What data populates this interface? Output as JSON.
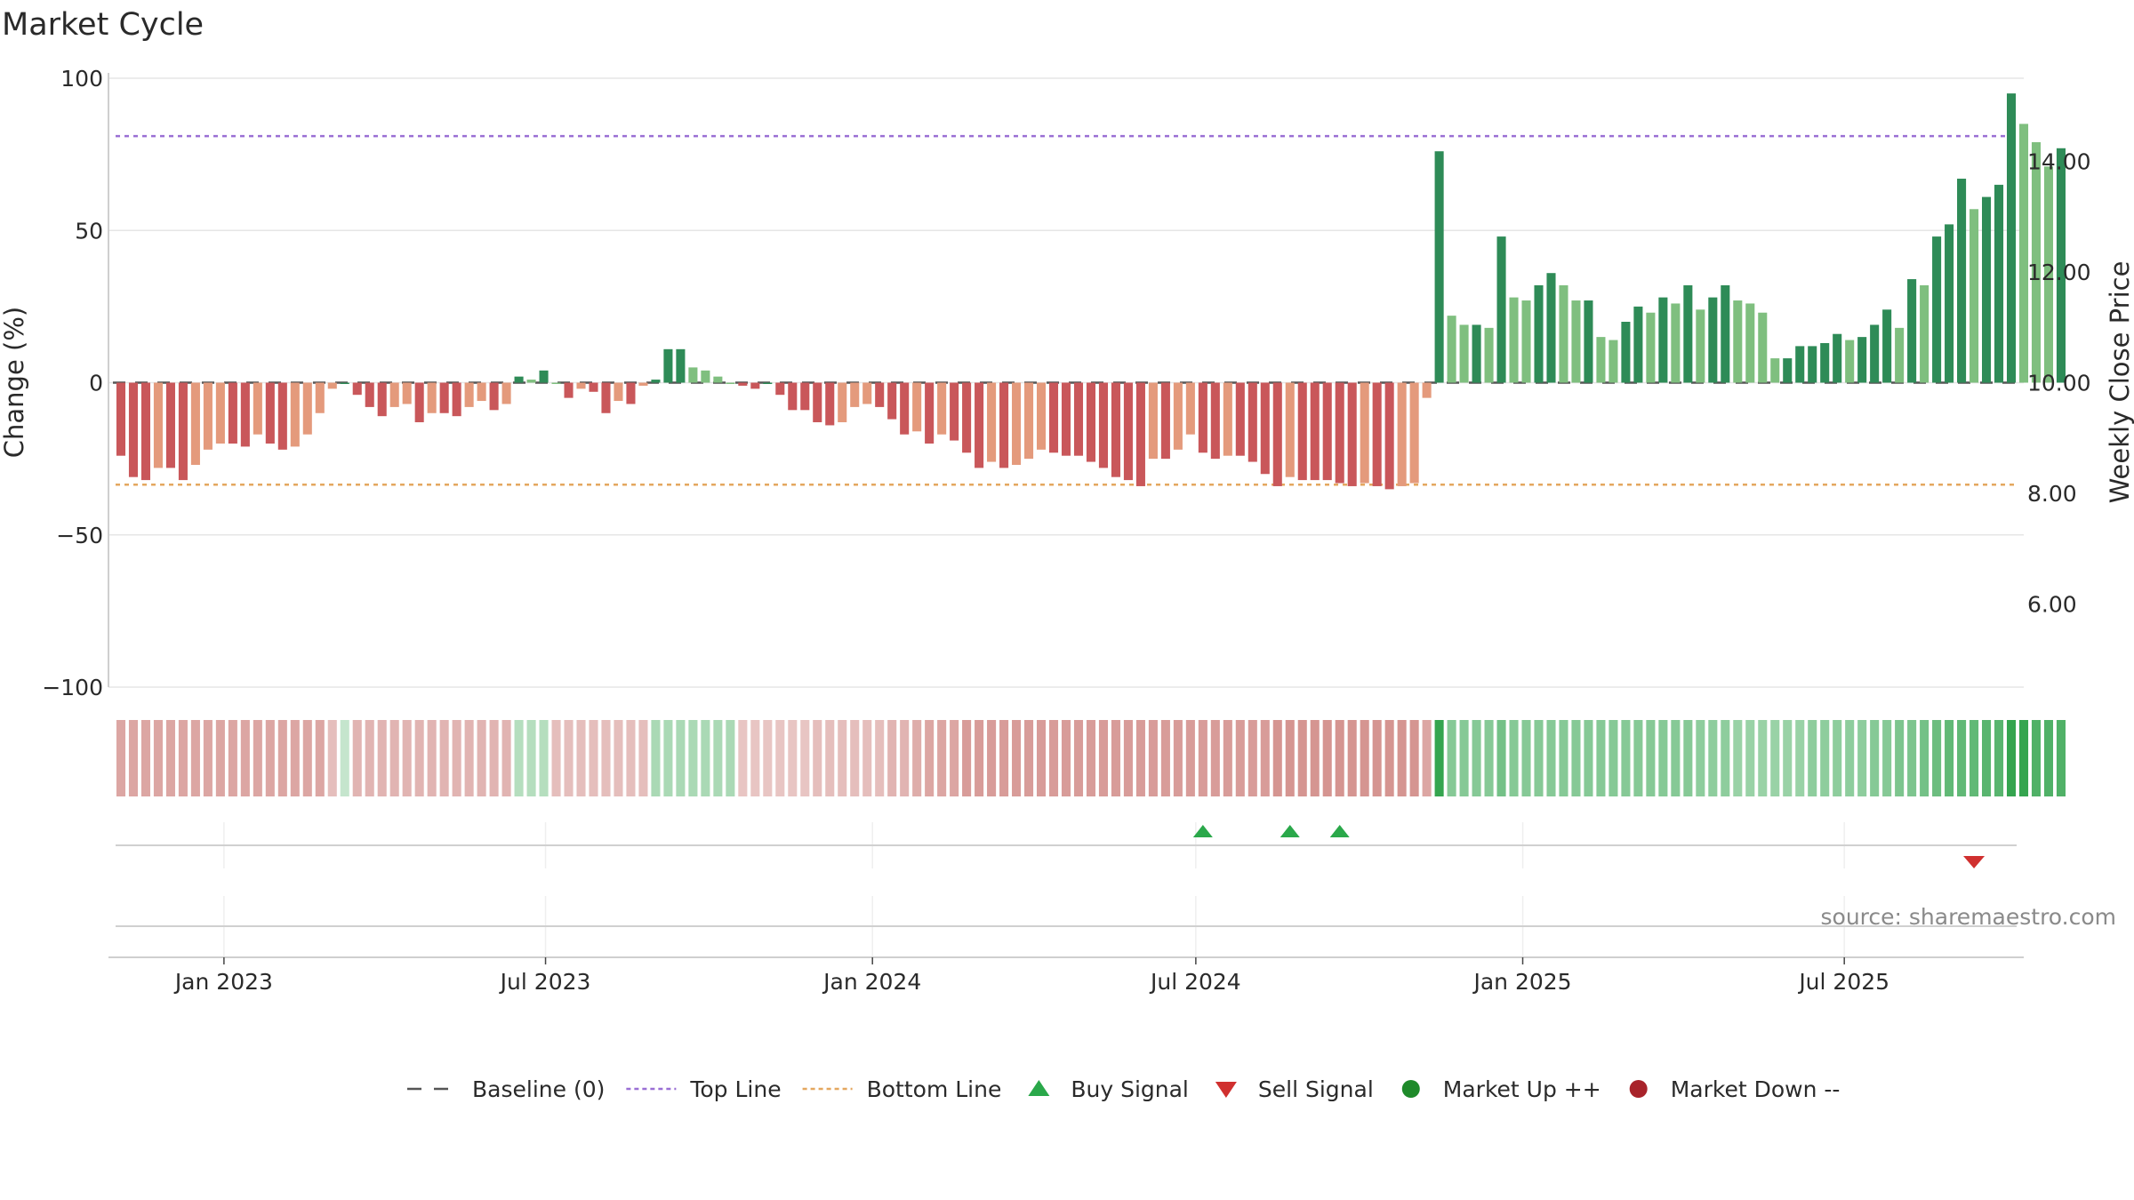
{
  "chart_data": {
    "type": "bar",
    "title": "Market Cycle",
    "ylabel": "Change (%)",
    "y2label": "Weekly Close Price",
    "ylim": [
      -100,
      100
    ],
    "y_ticks": [
      100,
      50,
      0,
      -50,
      -100
    ],
    "y_tick_labels": [
      "100",
      "50",
      "0",
      "−50",
      "−100"
    ],
    "y2lim": [
      4.5,
      15.5
    ],
    "y2_ticks": [
      14,
      12,
      10,
      8,
      6
    ],
    "y2_tick_labels": [
      "14.00",
      "12.00",
      "10.00",
      "8.00",
      "6.00"
    ],
    "x_start": "2022-10-28",
    "x_end": "2025-10-10",
    "week_dates_start": "2022-11-04",
    "x_ticks": [
      {
        "date": "2023-01-01",
        "label": "Jan 2023"
      },
      {
        "date": "2023-07-01",
        "label": "Jul 2023"
      },
      {
        "date": "2024-01-01",
        "label": "Jan 2024"
      },
      {
        "date": "2024-07-01",
        "label": "Jul 2024"
      },
      {
        "date": "2025-01-01",
        "label": "Jan 2025"
      },
      {
        "date": "2025-07-01",
        "label": "Jul 2025"
      }
    ],
    "top_line": 81,
    "bottom_line": -33.5,
    "baseline": 0,
    "weekly_change": [
      -24,
      -31,
      -32,
      -28,
      -28,
      -32,
      -27,
      -22,
      -20,
      -20,
      -21,
      -17,
      -20,
      -22,
      -21,
      -17,
      -10,
      -2,
      0,
      -4,
      -8,
      -11,
      -8,
      -7,
      -13,
      -10,
      -10,
      -11,
      -8,
      -6,
      -9,
      -7,
      2,
      1,
      4,
      0,
      -5,
      -2,
      -3,
      -10,
      -6,
      -7,
      -1,
      1,
      11,
      11,
      5,
      4,
      2,
      0,
      -1,
      -2,
      0,
      -4,
      -9,
      -9,
      -13,
      -14,
      -13,
      -8,
      -7,
      -8,
      -12,
      -17,
      -16,
      -20,
      -17,
      -19,
      -23,
      -28,
      -26,
      -28,
      -27,
      -25,
      -22,
      -23,
      -24,
      -24,
      -26,
      -28,
      -31,
      -32,
      -34,
      -25,
      -25,
      -22,
      -17,
      -23,
      -25,
      -24,
      -24,
      -26,
      -30,
      -34,
      -31,
      -32,
      -32,
      -32,
      -33,
      -34,
      -33,
      -34,
      -35,
      -34,
      -33,
      -5,
      76,
      22,
      19,
      19,
      18,
      48,
      28,
      27,
      32,
      36,
      32,
      27,
      27,
      15,
      14,
      20,
      25,
      23,
      28,
      26,
      32,
      24,
      28,
      32,
      27,
      26,
      23,
      8,
      8,
      12,
      12,
      13,
      16,
      14,
      15,
      19,
      24,
      18,
      34,
      32,
      48,
      52,
      67,
      57,
      61,
      65,
      95,
      85,
      79,
      71,
      77
    ],
    "heat_strip": [
      -0.45,
      -0.45,
      -0.45,
      -0.45,
      -0.45,
      -0.45,
      -0.45,
      -0.45,
      -0.45,
      -0.45,
      -0.45,
      -0.45,
      -0.45,
      -0.45,
      -0.45,
      -0.45,
      -0.45,
      -0.3,
      0.2,
      -0.35,
      -0.35,
      -0.35,
      -0.35,
      -0.35,
      -0.35,
      -0.35,
      -0.35,
      -0.35,
      -0.35,
      -0.35,
      -0.35,
      -0.35,
      0.3,
      0.3,
      0.3,
      -0.3,
      -0.3,
      -0.3,
      -0.3,
      -0.3,
      -0.3,
      -0.3,
      -0.3,
      0.35,
      0.35,
      0.35,
      0.35,
      0.35,
      0.35,
      0.35,
      -0.25,
      -0.25,
      -0.25,
      -0.25,
      -0.25,
      -0.25,
      -0.3,
      -0.3,
      -0.3,
      -0.3,
      -0.3,
      -0.3,
      -0.35,
      -0.35,
      -0.4,
      -0.45,
      -0.45,
      -0.45,
      -0.5,
      -0.5,
      -0.5,
      -0.5,
      -0.5,
      -0.5,
      -0.5,
      -0.5,
      -0.5,
      -0.5,
      -0.5,
      -0.5,
      -0.5,
      -0.5,
      -0.5,
      -0.5,
      -0.5,
      -0.5,
      -0.5,
      -0.5,
      -0.5,
      -0.5,
      -0.5,
      -0.5,
      -0.5,
      -0.55,
      -0.55,
      -0.55,
      -0.55,
      -0.55,
      -0.55,
      -0.55,
      -0.55,
      -0.55,
      -0.55,
      -0.55,
      -0.55,
      -0.45,
      1.0,
      0.55,
      0.55,
      0.55,
      0.55,
      0.65,
      0.55,
      0.55,
      0.55,
      0.55,
      0.55,
      0.55,
      0.55,
      0.55,
      0.55,
      0.55,
      0.55,
      0.55,
      0.55,
      0.55,
      0.55,
      0.5,
      0.5,
      0.5,
      0.45,
      0.45,
      0.45,
      0.45,
      0.45,
      0.45,
      0.5,
      0.5,
      0.5,
      0.5,
      0.5,
      0.55,
      0.55,
      0.6,
      0.6,
      0.65,
      0.7,
      0.75,
      0.75,
      0.75,
      0.8,
      0.8,
      1.0,
      1.0,
      0.85,
      0.85,
      0.85
    ],
    "buy_signals": [
      "2024-07-05",
      "2024-08-23",
      "2024-09-20"
    ],
    "sell_signals": [
      "2025-09-12"
    ],
    "colors": {
      "up_strong": "#2e8b57",
      "up_light": "#7fbf7f",
      "down_strong": "#c9575a",
      "down_light": "#e49a7c",
      "top_line": "#9a6fd4",
      "bottom_line": "#e4a75f",
      "baseline": "#555555",
      "buy": "#2aa84a",
      "sell": "#d0302f",
      "market_up": "#1e8a2a",
      "market_down": "#a8232a",
      "strip_pos": "#2aa046",
      "strip_neg": "#b5443e",
      "grid": "#e6e6e6"
    },
    "legend": [
      {
        "label": "Baseline (0)",
        "marker": "dash"
      },
      {
        "label": "Top Line",
        "marker": "dot-purple"
      },
      {
        "label": "Bottom Line",
        "marker": "dot-orange"
      },
      {
        "label": "Buy Signal",
        "marker": "triangle-up"
      },
      {
        "label": "Sell Signal",
        "marker": "triangle-down"
      },
      {
        "label": "Market Up ++",
        "marker": "circle-green"
      },
      {
        "label": "Market Down --",
        "marker": "circle-red"
      }
    ],
    "source": "source: sharemaestro.com"
  }
}
